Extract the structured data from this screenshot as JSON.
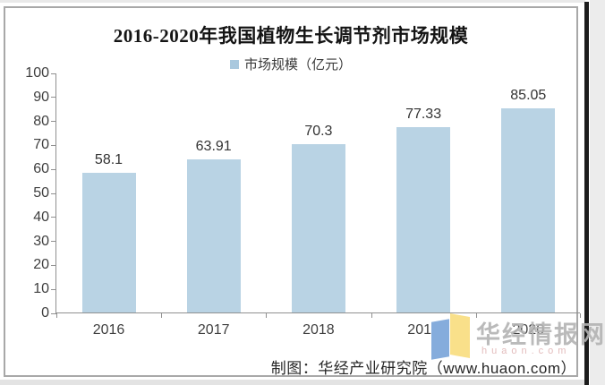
{
  "title": "2016-2020年我国植物生长调节剂市场规模",
  "legend": {
    "label": "市场规模（亿元）",
    "marker_color": "#a9c8de"
  },
  "chart_data": {
    "type": "bar",
    "categories": [
      "2016",
      "2017",
      "2018",
      "2019",
      "2020"
    ],
    "values": [
      58.1,
      63.91,
      70.3,
      77.33,
      85.05
    ],
    "value_labels": [
      "58.1",
      "63.91",
      "70.3",
      "77.33",
      "85.05"
    ],
    "series_name": "市场规模（亿元）",
    "title": "2016-2020年我国植物生长调节剂市场规模",
    "xlabel": "",
    "ylabel": "",
    "ylim": [
      0,
      100
    ],
    "ytick_step": 10,
    "bar_color": "#b9d3e4",
    "grid": false,
    "legend_position": "top-center"
  },
  "footer": {
    "credit": "制图：华经产业研究院（www.huaon.com）"
  },
  "watermark": {
    "text": "华经情报网",
    "subtext": "huaon.com",
    "logo_left_color": "#85acdc",
    "logo_right_color": "#f9e08a"
  }
}
